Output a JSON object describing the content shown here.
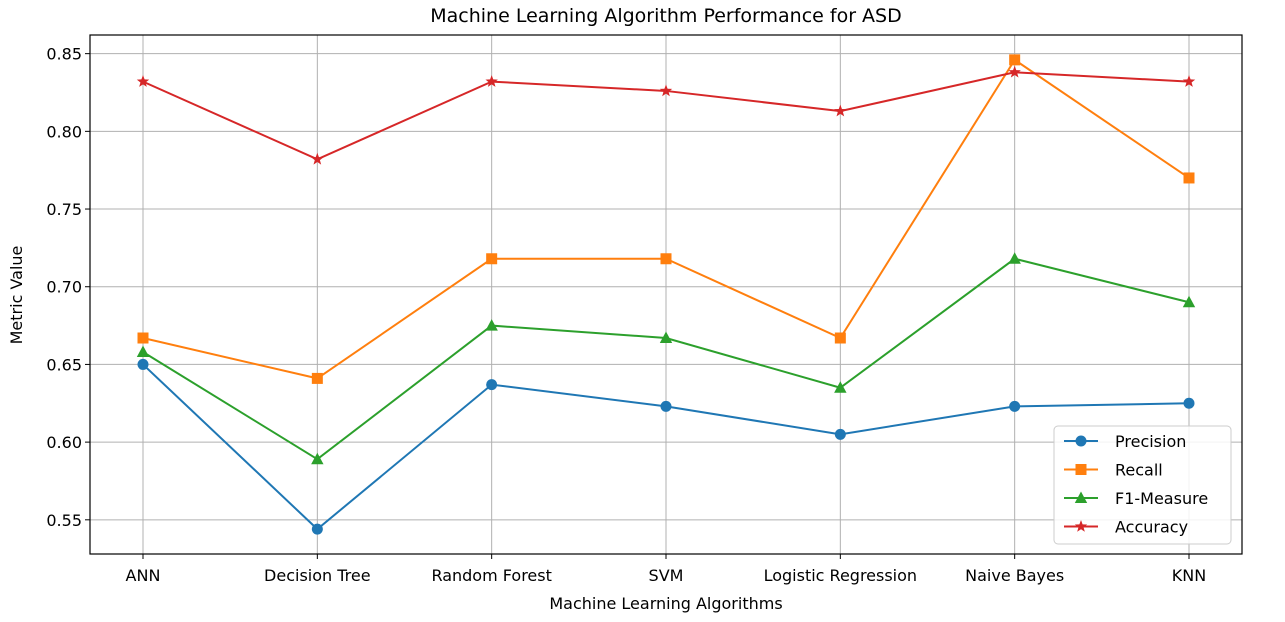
{
  "chart_data": {
    "type": "line",
    "title": "Machine Learning Algorithm Performance for ASD",
    "xlabel": "Machine Learning Algorithms",
    "ylabel": "Metric Value",
    "categories": [
      "ANN",
      "Decision Tree",
      "Random Forest",
      "SVM",
      "Logistic Regression",
      "Naive Bayes",
      "KNN"
    ],
    "ylim": [
      0.528,
      0.862
    ],
    "yticks": [
      "0.55",
      "0.60",
      "0.65",
      "0.70",
      "0.75",
      "0.80",
      "0.85"
    ],
    "grid": true,
    "legend_position": "bottom-right",
    "series": [
      {
        "name": "Precision",
        "color": "#1f77b4",
        "marker": "circle",
        "values": [
          0.65,
          0.544,
          0.637,
          0.623,
          0.605,
          0.623,
          0.625
        ]
      },
      {
        "name": "Recall",
        "color": "#ff7f0e",
        "marker": "square",
        "values": [
          0.667,
          0.641,
          0.718,
          0.718,
          0.667,
          0.846,
          0.77
        ]
      },
      {
        "name": "F1-Measure",
        "color": "#2ca02c",
        "marker": "triangle",
        "values": [
          0.658,
          0.589,
          0.675,
          0.667,
          0.635,
          0.718,
          0.69
        ]
      },
      {
        "name": "Accuracy",
        "color": "#d62728",
        "marker": "star",
        "values": [
          0.832,
          0.782,
          0.832,
          0.826,
          0.813,
          0.838,
          0.832
        ]
      }
    ]
  }
}
